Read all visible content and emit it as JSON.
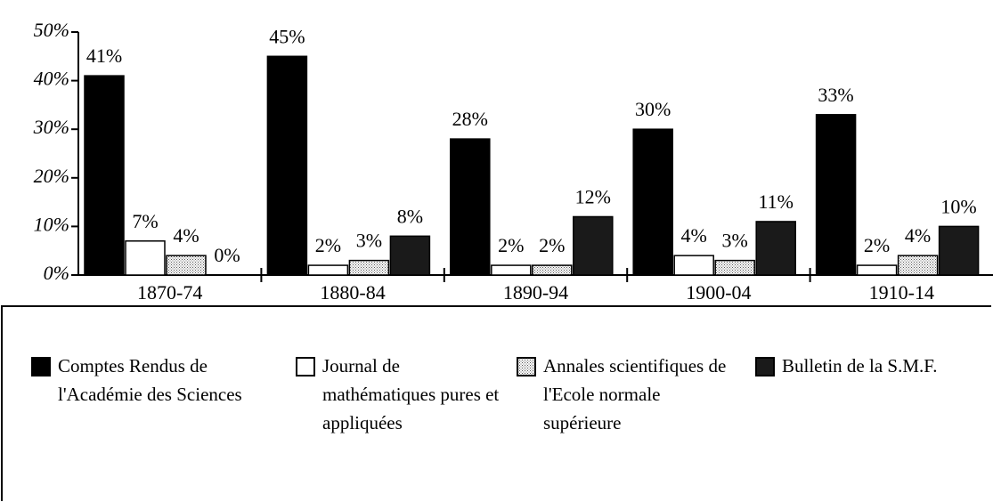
{
  "chart_data": {
    "type": "bar",
    "categories": [
      "1870-74",
      "1880-84",
      "1890-94",
      "1900-04",
      "1910-14"
    ],
    "series": [
      {
        "name": "Comptes Rendus de l'Académie des Sciences",
        "color": "#000000",
        "values": [
          41,
          45,
          28,
          30,
          33
        ],
        "value_labels": [
          "41%",
          "45%",
          "28%",
          "30%",
          "33%"
        ]
      },
      {
        "name": "Journal de mathématiques pures et appliquées",
        "color": "#ffffff",
        "values": [
          7,
          2,
          2,
          4,
          2
        ],
        "value_labels": [
          "7%",
          "2%",
          "2%",
          "4%",
          "2%"
        ]
      },
      {
        "name": "Annales scientifiques de l'Ecole normale supérieure",
        "color": "#555555",
        "pattern": "fine",
        "values": [
          4,
          3,
          2,
          3,
          4
        ],
        "value_labels": [
          "4%",
          "3%",
          "2%",
          "3%",
          "4%"
        ]
      },
      {
        "name": "Bulletin de la S.M.F.",
        "color": "#1a1a1a",
        "pattern": "coarse",
        "values": [
          0,
          8,
          12,
          11,
          10
        ],
        "value_labels": [
          "0%",
          "8%",
          "12%",
          "11%",
          "10%"
        ]
      }
    ],
    "ylim": [
      0,
      50
    ],
    "yticks": [
      {
        "value": 0,
        "label": "0%"
      },
      {
        "value": 10,
        "label": "10%"
      },
      {
        "value": 20,
        "label": "20%"
      },
      {
        "value": 30,
        "label": "30%"
      },
      {
        "value": 40,
        "label": "40%"
      },
      {
        "value": 50,
        "label": "50%"
      }
    ]
  }
}
